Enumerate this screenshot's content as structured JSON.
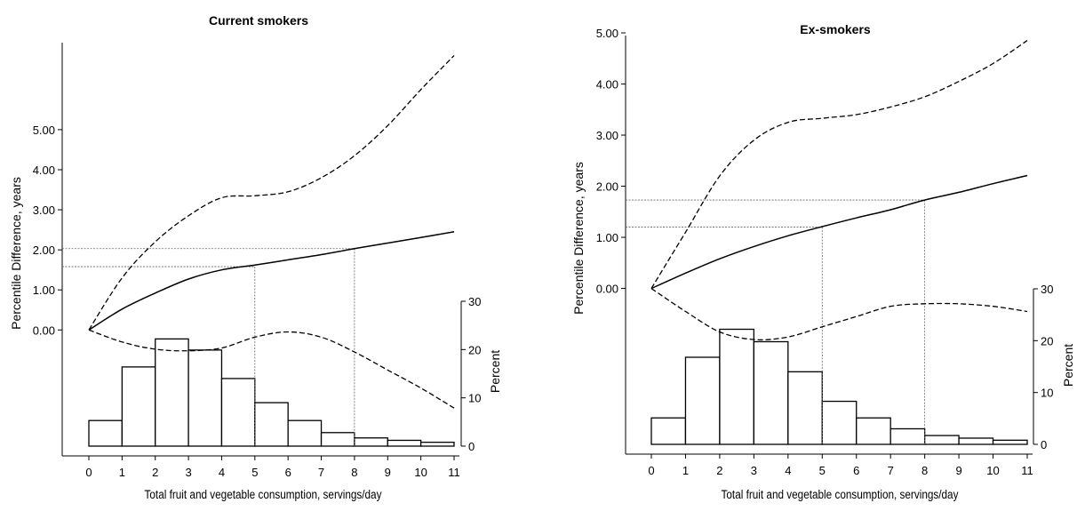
{
  "chart_data": [
    {
      "type": "line",
      "title": "Current smokers",
      "xlabel": "Total fruit and vegetable consumption, servings/day",
      "ylabel": "Percentile Difference, years",
      "y2label": "Percent",
      "x_ticks": [
        "0",
        "1",
        "2",
        "3",
        "4",
        "5",
        "6",
        "7",
        "8",
        "9",
        "10",
        "11"
      ],
      "y_ticks": [
        "0.00",
        "1.00",
        "2.00",
        "3.00",
        "4.00",
        "5.00"
      ],
      "y_range": [
        -2.9,
        6.95
      ],
      "y2_ticks": [
        "0",
        "10",
        "20",
        "30"
      ],
      "y2_range": [
        0,
        30
      ],
      "series": [
        {
          "role": "estimate",
          "style": "solid",
          "x": [
            0,
            1,
            2,
            3,
            4,
            5,
            6,
            7,
            8,
            9,
            10,
            11
          ],
          "y": [
            0.0,
            0.52,
            0.92,
            1.27,
            1.5,
            1.62,
            1.75,
            1.88,
            2.03,
            2.17,
            2.31,
            2.45
          ]
        },
        {
          "role": "upper_ci",
          "style": "dashed",
          "x": [
            0,
            1,
            2,
            3,
            4,
            5,
            6,
            7,
            8,
            9,
            10,
            11
          ],
          "y": [
            0.0,
            1.3,
            2.2,
            2.85,
            3.3,
            3.35,
            3.45,
            3.8,
            4.35,
            5.1,
            6.0,
            6.85
          ]
        },
        {
          "role": "lower_ci",
          "style": "dashed",
          "x": [
            0,
            1,
            2,
            3,
            4,
            5,
            6,
            7,
            8,
            9,
            10,
            11
          ],
          "y": [
            0.0,
            -0.3,
            -0.48,
            -0.52,
            -0.45,
            -0.18,
            -0.05,
            -0.18,
            -0.55,
            -1.0,
            -1.45,
            -1.95
          ]
        }
      ],
      "reference_lines": [
        {
          "x": 5,
          "y": 1.58
        },
        {
          "x": 8,
          "y": 2.03
        }
      ],
      "histogram": {
        "bin_edges": [
          0,
          1,
          2,
          3,
          4,
          5,
          6,
          7,
          8,
          9,
          10,
          11
        ],
        "percent": [
          5.3,
          16.4,
          22.2,
          19.9,
          14.0,
          9.0,
          5.3,
          2.8,
          1.7,
          1.2,
          0.8
        ]
      }
    },
    {
      "type": "line",
      "title": "Ex-smokers",
      "xlabel": "Total fruit and vegetable consumption, servings/day",
      "ylabel": "Percentile Difference, years",
      "y2label": "Percent",
      "x_ticks": [
        "0",
        "1",
        "2",
        "3",
        "4",
        "5",
        "6",
        "7",
        "8",
        "9",
        "10",
        "11"
      ],
      "y_ticks": [
        "0.00",
        "1.00",
        "2.00",
        "3.00",
        "4.00",
        "5.00"
      ],
      "y_range": [
        -3.05,
        5.0
      ],
      "y2_ticks": [
        "0",
        "10",
        "20",
        "30"
      ],
      "y2_range": [
        0,
        30
      ],
      "series": [
        {
          "role": "estimate",
          "style": "solid",
          "x": [
            0,
            1,
            2,
            3,
            4,
            5,
            6,
            7,
            8,
            9,
            10,
            11
          ],
          "y": [
            0.0,
            0.3,
            0.58,
            0.82,
            1.03,
            1.21,
            1.38,
            1.54,
            1.73,
            1.88,
            2.05,
            2.21
          ]
        },
        {
          "role": "upper_ci",
          "style": "dashed",
          "x": [
            0,
            1,
            2,
            3,
            4,
            5,
            6,
            7,
            8,
            9,
            10,
            11
          ],
          "y": [
            0.0,
            1.1,
            2.2,
            2.9,
            3.25,
            3.33,
            3.4,
            3.55,
            3.75,
            4.05,
            4.4,
            4.85
          ]
        },
        {
          "role": "lower_ci",
          "style": "dashed",
          "x": [
            0,
            1,
            2,
            3,
            4,
            5,
            6,
            7,
            8,
            9,
            10,
            11
          ],
          "y": [
            0.0,
            -0.45,
            -0.85,
            -1.0,
            -0.95,
            -0.75,
            -0.55,
            -0.35,
            -0.3,
            -0.3,
            -0.35,
            -0.45
          ]
        }
      ],
      "reference_lines": [
        {
          "x": 5,
          "y": 1.2
        },
        {
          "x": 8,
          "y": 1.73
        }
      ],
      "histogram": {
        "bin_edges": [
          0,
          1,
          2,
          3,
          4,
          5,
          6,
          7,
          8,
          9,
          10,
          11
        ],
        "percent": [
          5.1,
          16.8,
          22.2,
          19.8,
          14.0,
          8.3,
          5.1,
          3.0,
          1.7,
          1.2,
          0.8
        ]
      }
    }
  ]
}
